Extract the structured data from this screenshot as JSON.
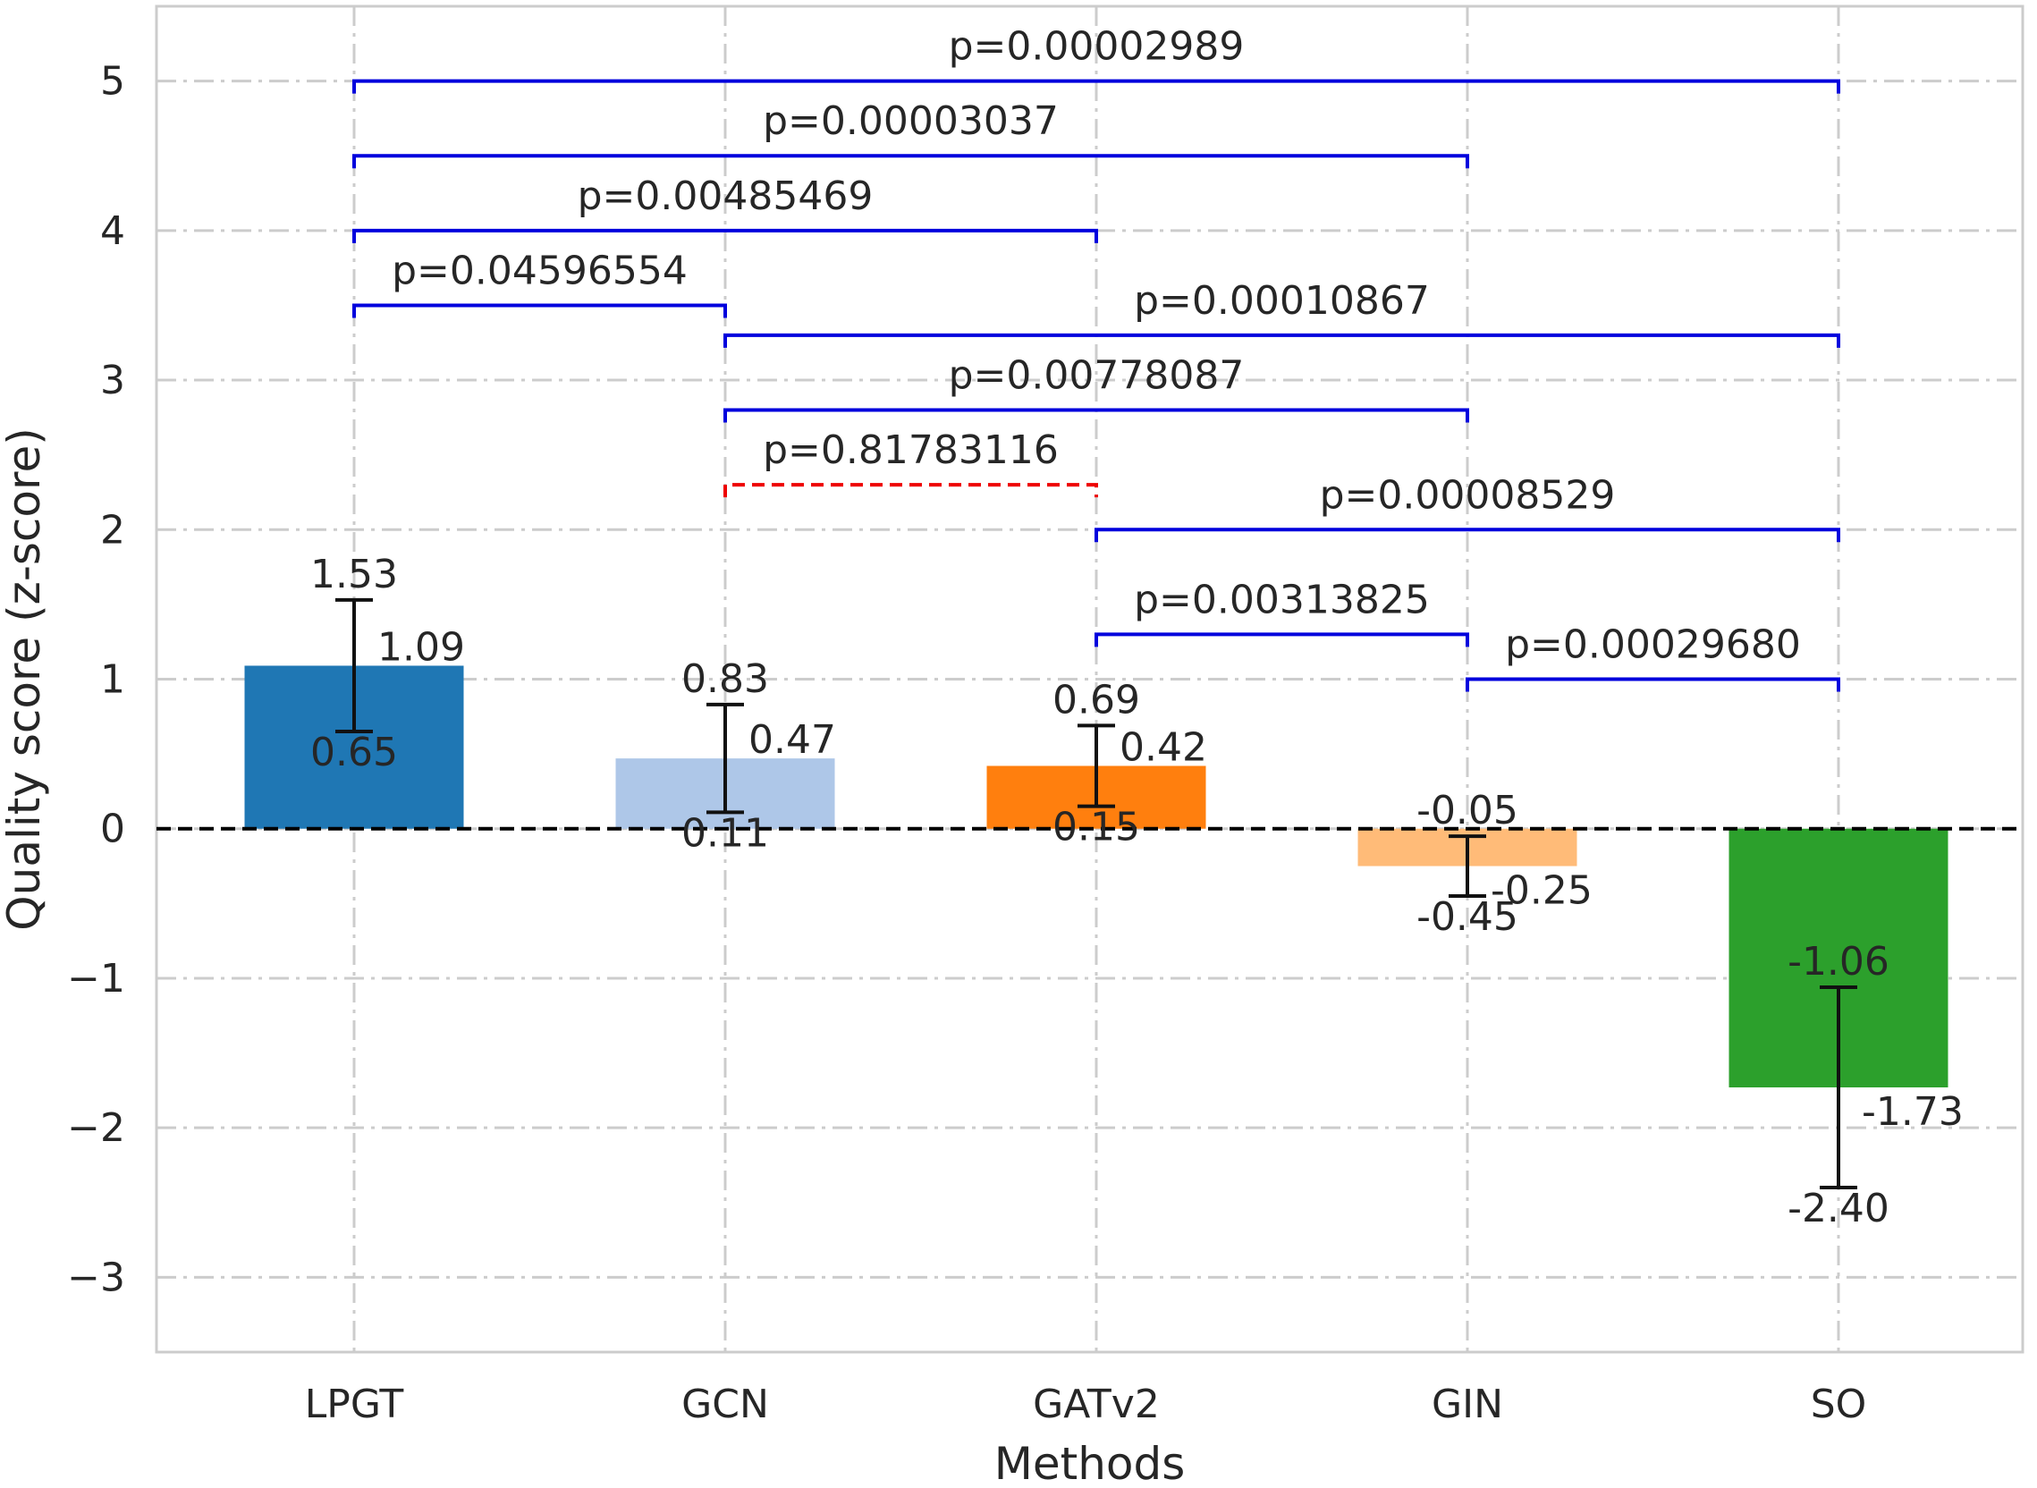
{
  "chart_data": {
    "type": "bar",
    "xlabel": "Methods",
    "ylabel": "Quality score (z-score)",
    "ylim": [
      -3.5,
      5.5
    ],
    "yticks": [
      -3,
      -2,
      -1,
      0,
      1,
      2,
      3,
      4,
      5
    ],
    "ytick_labels": [
      "−3",
      "−2",
      "−1",
      "0",
      "1",
      "2",
      "3",
      "4",
      "5"
    ],
    "grid": true,
    "categories": [
      "LPGT",
      "GCN",
      "GATv2",
      "GIN",
      "SO"
    ],
    "values": [
      1.09,
      0.47,
      0.42,
      -0.25,
      -1.73
    ],
    "value_labels": [
      "1.09",
      "0.47",
      "0.42",
      "-0.25",
      "-1.73"
    ],
    "ci_upper": [
      1.53,
      0.83,
      0.69,
      -0.05,
      -1.06
    ],
    "ci_upper_labels": [
      "1.53",
      "0.83",
      "0.69",
      "-0.05",
      "-1.06"
    ],
    "ci_lower": [
      0.65,
      0.11,
      0.15,
      -0.45,
      -2.4
    ],
    "ci_lower_labels": [
      "0.65",
      "0.11",
      "0.15",
      "-0.45",
      "-2.40"
    ],
    "colors": [
      "#1f77b4",
      "#aec7e8",
      "#ff7f0e",
      "#ffbb78",
      "#2ca02c"
    ],
    "zero_line": true,
    "comparisons": [
      {
        "from": "LPGT",
        "to": "SO",
        "y": 5.0,
        "label": "p=0.00002989",
        "significant": true
      },
      {
        "from": "LPGT",
        "to": "GIN",
        "y": 4.5,
        "label": "p=0.00003037",
        "significant": true
      },
      {
        "from": "LPGT",
        "to": "GATv2",
        "y": 4.0,
        "label": "p=0.00485469",
        "significant": true
      },
      {
        "from": "LPGT",
        "to": "GCN",
        "y": 3.5,
        "label": "p=0.04596554",
        "significant": true
      },
      {
        "from": "GCN",
        "to": "SO",
        "y": 3.3,
        "label": "p=0.00010867",
        "significant": true
      },
      {
        "from": "GCN",
        "to": "GIN",
        "y": 2.8,
        "label": "p=0.00778087",
        "significant": true
      },
      {
        "from": "GCN",
        "to": "GATv2",
        "y": 2.3,
        "label": "p=0.81783116",
        "significant": false
      },
      {
        "from": "GATv2",
        "to": "SO",
        "y": 2.0,
        "label": "p=0.00008529",
        "significant": true
      },
      {
        "from": "GATv2",
        "to": "GIN",
        "y": 1.3,
        "label": "p=0.00313825",
        "significant": true
      },
      {
        "from": "GIN",
        "to": "SO",
        "y": 1.0,
        "label": "p=0.00029680",
        "significant": true
      }
    ],
    "sig_color": "#0000dd",
    "nonsig_color": "#ee0000"
  }
}
